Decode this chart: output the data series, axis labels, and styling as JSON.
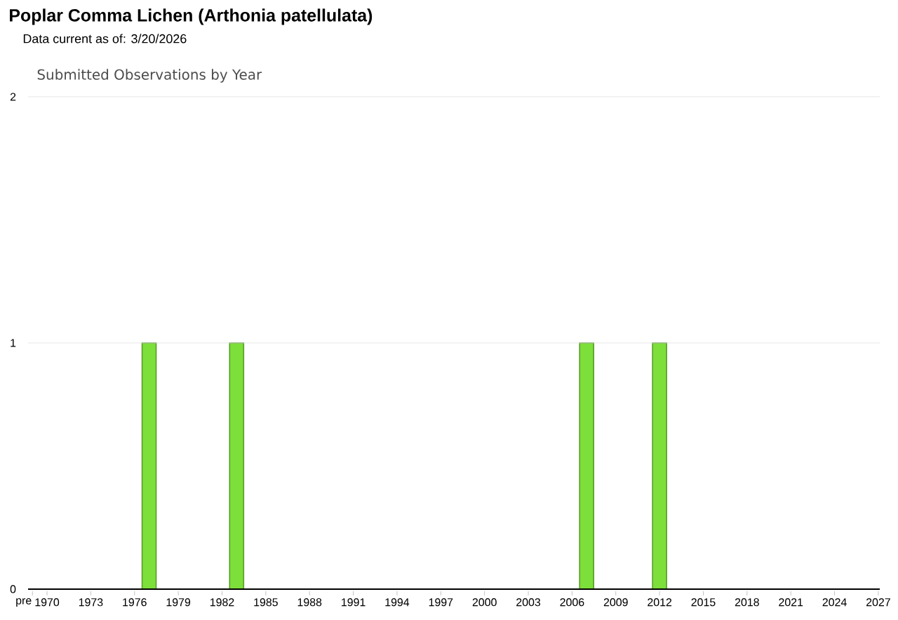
{
  "chart_data": {
    "type": "bar",
    "title": "Poplar Comma Lichen   (Arthonia patellulata)",
    "subtitle": "Data current as of: 3/20/2026",
    "annotations": [
      "Submitted Observations by Year"
    ],
    "categories": [
      "pre",
      "1970",
      null,
      null,
      "1973",
      null,
      null,
      "1976",
      null,
      null,
      "1979",
      null,
      null,
      "1982",
      null,
      null,
      "1985",
      null,
      null,
      "1988",
      null,
      null,
      "1991",
      null,
      null,
      "1994",
      null,
      null,
      "1997",
      null,
      null,
      "2000",
      null,
      null,
      "2003",
      null,
      null,
      "2006",
      null,
      null,
      "2009",
      null,
      null,
      "2012",
      null,
      null,
      "2015",
      null,
      null,
      "2018",
      null,
      null,
      "2021",
      null,
      null,
      "2024",
      null,
      null,
      "2027"
    ],
    "values": [
      0,
      0,
      0,
      0,
      0,
      0,
      0,
      0,
      1,
      0,
      0,
      0,
      0,
      0,
      1,
      0,
      0,
      0,
      0,
      0,
      0,
      0,
      0,
      0,
      0,
      0,
      0,
      0,
      0,
      0,
      0,
      0,
      0,
      0,
      0,
      0,
      0,
      0,
      1,
      0,
      0,
      0,
      0,
      1,
      0,
      0,
      0,
      0,
      0,
      0,
      0,
      0,
      0,
      0,
      0,
      0,
      0,
      0,
      0
    ],
    "color": "#7ddf3a",
    "ylim": [
      0,
      2
    ],
    "yticks": [
      0,
      1,
      2
    ],
    "grid": "y"
  }
}
